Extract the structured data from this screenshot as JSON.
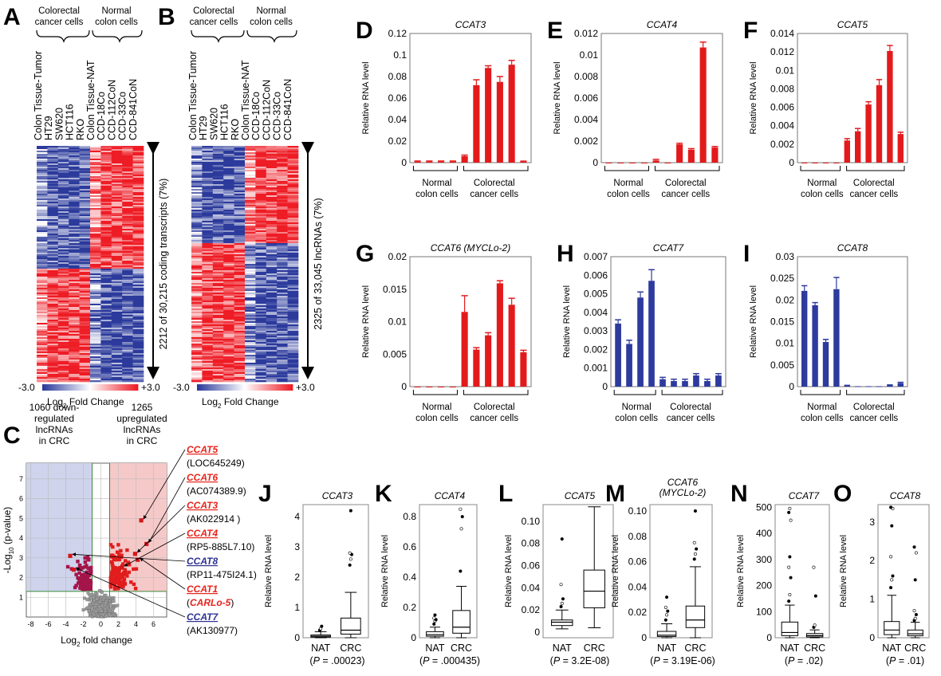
{
  "panels": {
    "A": {
      "letter": "A",
      "group_labels": [
        [
          "Colorectal",
          "cancer cells"
        ],
        [
          "Normal",
          "colon cells"
        ]
      ],
      "sample_labels": [
        "Colon Tissue-Tumor",
        "HT29",
        "SW620",
        "HCT116",
        "RKO",
        "Colon Tissue-NAT",
        "CCD-18Co",
        "CCD-112CoN",
        "CCD-33Co",
        "CCD-841CoN"
      ],
      "side_label": "2212 of 30,215 coding transcripts (7%)",
      "scale_min": "-3.0",
      "scale_max": "+3.0",
      "scale_label_main": "Log",
      "scale_label_sub": "2",
      "scale_label_rest": "Fold Change"
    },
    "B": {
      "letter": "B",
      "group_labels": [
        [
          "Colorectal",
          "cancer cells"
        ],
        [
          "Normal",
          "colon cells"
        ]
      ],
      "sample_labels": [
        "Colon Tissue-Tumor",
        "HT29",
        "SW620",
        "HCT116",
        "RKO",
        "Colon Tissue-NAT",
        "CCD-18Co",
        "CCD-112CoN",
        "CCD-33Co",
        "CCD-841CoN"
      ],
      "side_label": "2325 of 33,045 lncRNAs (7%)",
      "scale_min": "-3.0",
      "scale_max": "+3.0",
      "scale_label_main": "Log",
      "scale_label_sub": "2",
      "scale_label_rest": "Fold Change"
    },
    "C": {
      "letter": "C",
      "down_label": [
        "1060 down-",
        "regulated",
        "lncRNAs",
        "in CRC"
      ],
      "up_label": [
        "1265",
        "upregulated",
        "lncRNAs",
        "in CRC"
      ],
      "xlabel_main": "Log",
      "xlabel_sub": "2",
      "xlabel_rest": " fold change",
      "ylabel_pre": "-Log",
      "ylabel_sub": "10",
      "ylabel_rest": " (p-value)",
      "annotations": [
        {
          "name": "CCAT5",
          "alias": "(LOC645249)",
          "color": "#e8231b"
        },
        {
          "name": "CCAT6",
          "alias": "(AC074389.9)",
          "color": "#e8231b"
        },
        {
          "name": "CCAT3",
          "alias": "(AK022914 )",
          "color": "#e8231b"
        },
        {
          "name": "CCAT4",
          "alias": "(RP5-885L7.10)",
          "color": "#e8231b"
        },
        {
          "name": "CCAT8",
          "alias": "(RP11-475I24.1)",
          "color": "#2e3192"
        },
        {
          "name": "CCAT1",
          "alias_open": "(",
          "alias_name": "CARLo-5",
          "alias_close": ")",
          "color": "#e8231b"
        },
        {
          "name": "CCAT7",
          "alias": "(AK130977)",
          "color": "#2e3192"
        }
      ]
    },
    "letters": {
      "D": "D",
      "E": "E",
      "F": "F",
      "G": "G",
      "H": "H",
      "I": "I",
      "J": "J",
      "K": "K",
      "L": "L",
      "M": "M",
      "N": "N",
      "O": "O"
    },
    "bar_group_labels": {
      "normal": [
        "Normal",
        "colon cells"
      ],
      "crc": [
        "Colorectal",
        "cancer cells"
      ]
    },
    "bar_ylabel": "Relative RNA level",
    "box_ylabel": "Relative RNA level"
  },
  "colors": {
    "red_bar": "#e31a1c",
    "blue_bar": "#2d3a9e",
    "heat_red": "#ee1c25",
    "heat_blue": "#2b3a9b",
    "volcano_down_bg": "#cfd3ec",
    "volcano_up_bg": "#f6c9c9"
  },
  "chart_data": [
    {
      "id": "D",
      "type": "bar",
      "title": "CCAT3",
      "ylim": [
        0,
        0.12
      ],
      "yticks": [
        "0",
        "0.02",
        "0.04",
        "0.06",
        "0.08",
        "0.1",
        "0.12"
      ],
      "ytick_values": [
        0,
        0.02,
        0.04,
        0.06,
        0.08,
        0.1,
        0.12
      ],
      "values": [
        0.001,
        0.001,
        0.001,
        0.001,
        0.006,
        0.072,
        0.088,
        0.075,
        0.091,
        0.001
      ],
      "errors": [
        0.0005,
        0.0005,
        0.0005,
        0.0005,
        0.001,
        0.005,
        0.002,
        0.005,
        0.004,
        0.0004
      ],
      "colors": [
        "red",
        "red",
        "red",
        "red",
        "red",
        "red",
        "red",
        "red",
        "red",
        "red"
      ]
    },
    {
      "id": "E",
      "type": "bar",
      "title": "CCAT4",
      "ylim": [
        0,
        0.012
      ],
      "yticks": [
        "0",
        "0.002",
        "0.004",
        "0.006",
        "0.008",
        "0.01",
        "0.012"
      ],
      "ytick_values": [
        0,
        0.002,
        0.004,
        0.006,
        0.008,
        0.01,
        0.012
      ],
      "values": [
        0,
        0,
        0,
        0,
        0.0002,
        0,
        0.0017,
        0.0012,
        0.0107,
        0.0014
      ],
      "errors": [
        0,
        0,
        0,
        0,
        0.0001,
        0,
        0.0001,
        0.0001,
        0.0005,
        0.0001
      ],
      "colors": [
        "red",
        "red",
        "red",
        "red",
        "red",
        "red",
        "red",
        "red",
        "red",
        "red"
      ]
    },
    {
      "id": "F",
      "type": "bar",
      "title": "CCAT5",
      "ylim": [
        0,
        0.014
      ],
      "yticks": [
        "0",
        "0.002",
        "0.004",
        "0.006",
        "0.008",
        "0.01",
        "0.012",
        "0.014"
      ],
      "ytick_values": [
        0,
        0.002,
        0.004,
        0.006,
        0.008,
        0.01,
        0.012,
        0.014
      ],
      "values": [
        0,
        0,
        0,
        0,
        0.0024,
        0.0034,
        0.0063,
        0.0084,
        0.0121,
        0.0031
      ],
      "errors": [
        0,
        0,
        0,
        0,
        0.0002,
        0.0003,
        0.0003,
        0.0006,
        0.0006,
        0.0002
      ],
      "colors": [
        "red",
        "red",
        "red",
        "red",
        "red",
        "red",
        "red",
        "red",
        "red",
        "red"
      ]
    },
    {
      "id": "G",
      "type": "bar",
      "title": "CCAT6 (MYCLo-2)",
      "ylim": [
        0,
        0.02
      ],
      "yticks": [
        "0",
        "0.005",
        "0.01",
        "0.015",
        "0.02"
      ],
      "ytick_values": [
        0,
        0.005,
        0.01,
        0.015,
        0.02
      ],
      "values": [
        0,
        0,
        0,
        0,
        0.0115,
        0.0057,
        0.0079,
        0.0159,
        0.0126,
        0.0053
      ],
      "errors": [
        0,
        0,
        0,
        0,
        0.0025,
        0.0003,
        0.0004,
        0.0004,
        0.001,
        0.0003
      ],
      "colors": [
        "red",
        "red",
        "red",
        "red",
        "red",
        "red",
        "red",
        "red",
        "red",
        "red"
      ]
    },
    {
      "id": "H",
      "type": "bar",
      "title": "CCAT7",
      "ylim": [
        0,
        0.007
      ],
      "yticks": [
        "0",
        "0.001",
        "0.002",
        "0.003",
        "0.004",
        "0.005",
        "0.006",
        "0.007"
      ],
      "ytick_values": [
        0,
        0.001,
        0.002,
        0.003,
        0.004,
        0.005,
        0.006,
        0.007
      ],
      "values": [
        0.0034,
        0.0023,
        0.0048,
        0.0057,
        0.0004,
        0.0003,
        0.0003,
        0.0006,
        0.0003,
        0.0006
      ],
      "errors": [
        0.0002,
        0.0002,
        0.0003,
        0.0006,
        0.0001,
        0.0001,
        0.0001,
        0.0001,
        0.0001,
        0.0001
      ],
      "colors": [
        "blue",
        "blue",
        "blue",
        "blue",
        "blue",
        "blue",
        "blue",
        "blue",
        "blue",
        "blue"
      ]
    },
    {
      "id": "I",
      "type": "bar",
      "title": "CCAT8",
      "ylim": [
        0,
        0.03
      ],
      "yticks": [
        "0",
        "0.005",
        "0.01",
        "0.015",
        "0.02",
        "0.025",
        "0.03"
      ],
      "ytick_values": [
        0,
        0.005,
        0.01,
        0.015,
        0.02,
        0.025,
        0.03
      ],
      "values": [
        0.0221,
        0.0188,
        0.0103,
        0.0225,
        0.0002,
        0.0001,
        0.0001,
        0.0001,
        0.0003,
        0.0008
      ],
      "errors": [
        0.0012,
        0.0006,
        0.0006,
        0.0027,
        0.0001,
        0,
        0,
        0,
        0.0001,
        0.0002
      ],
      "colors": [
        "blue",
        "blue",
        "blue",
        "blue",
        "blue",
        "blue",
        "blue",
        "blue",
        "blue",
        "blue"
      ]
    },
    {
      "id": "J",
      "type": "box",
      "title": "CCAT3",
      "ylim": [
        0,
        4.4
      ],
      "yticks": [
        "0",
        "1",
        "2",
        "3",
        "4"
      ],
      "ytick_values": [
        0,
        1,
        2,
        3,
        4
      ],
      "categories": [
        "NAT",
        "CRC"
      ],
      "pvalue_pre": "(",
      "pvalue_p": "P",
      "pvalue_rest": " = .00023)",
      "boxes": [
        {
          "min": 0,
          "q1": 0.02,
          "median": 0.05,
          "q3": 0.09,
          "max": 0.2,
          "outliers": [
            0.25,
            0.3,
            0.38
          ]
        },
        {
          "min": 0,
          "q1": 0.12,
          "median": 0.25,
          "q3": 0.65,
          "max": 1.5,
          "outliers": [
            2.4,
            2.6,
            2.75,
            2.8,
            4.2
          ]
        }
      ]
    },
    {
      "id": "K",
      "type": "box",
      "title": "CCAT4",
      "ylim": [
        0,
        0.88
      ],
      "yticks": [
        "0",
        "0.2",
        "0.4",
        "0.6",
        "0.8"
      ],
      "ytick_values": [
        0,
        0.2,
        0.4,
        0.6,
        0.8
      ],
      "categories": [
        "NAT",
        "CRC"
      ],
      "pvalue_pre": "(",
      "pvalue_p": "P",
      "pvalue_rest": " = .000435)",
      "boxes": [
        {
          "min": 0,
          "q1": 0.01,
          "median": 0.02,
          "q3": 0.04,
          "max": 0.07,
          "outliers": [
            0.09,
            0.11,
            0.12,
            0.13,
            0.15
          ]
        },
        {
          "min": 0,
          "q1": 0.03,
          "median": 0.07,
          "q3": 0.18,
          "max": 0.34,
          "outliers": [
            0.44,
            0.72,
            0.8,
            0.85
          ]
        }
      ]
    },
    {
      "id": "L",
      "type": "box",
      "title": "CCAT5",
      "ylim": [
        -0.005,
        0.115
      ],
      "yticks": [
        "0",
        "0.02",
        "0.04",
        "0.06",
        "0.08",
        "0.10"
      ],
      "ytick_values": [
        0,
        0.02,
        0.04,
        0.06,
        0.08,
        0.1
      ],
      "categories": [
        "NAT",
        "CRC"
      ],
      "pvalue_pre": "(",
      "pvalue_p": "P",
      "pvalue_rest": " = 3.2E-08)",
      "boxes": [
        {
          "min": 0.003,
          "q1": 0.006,
          "median": 0.009,
          "q3": 0.011,
          "max": 0.02,
          "outliers": [
            0.023,
            0.026,
            0.03,
            0.043,
            0.084
          ]
        },
        {
          "min": 0.004,
          "q1": 0.022,
          "median": 0.037,
          "q3": 0.056,
          "max": 0.113,
          "outliers": []
        }
      ]
    },
    {
      "id": "M",
      "type": "box",
      "title": "CCAT6",
      "subtitle": "(MYCLo-2)",
      "ylim": [
        0,
        0.105
      ],
      "yticks": [
        "0",
        "0.02",
        "0.04",
        "0.06",
        "0.08",
        "0.10"
      ],
      "ytick_values": [
        0,
        0.02,
        0.04,
        0.06,
        0.08,
        0.1
      ],
      "categories": [
        "NAT",
        "CRC"
      ],
      "pvalue_pre": "(",
      "pvalue_p": "P",
      "pvalue_rest": " = 3.19E-06)",
      "boxes": [
        {
          "min": 0,
          "q1": 0.001,
          "median": 0.002,
          "q3": 0.005,
          "max": 0.011,
          "outliers": [
            0.014,
            0.018,
            0.021,
            0.024,
            0.032
          ]
        },
        {
          "min": 0,
          "q1": 0.008,
          "median": 0.014,
          "q3": 0.025,
          "max": 0.056,
          "outliers": [
            0.062,
            0.066,
            0.07,
            0.075,
            0.1
          ]
        }
      ]
    },
    {
      "id": "N",
      "type": "box",
      "title": "CCAT7",
      "ylim": [
        0,
        510
      ],
      "yticks": [
        "0",
        "100",
        "200",
        "300",
        "400",
        "500"
      ],
      "ytick_values": [
        0,
        100,
        200,
        300,
        400,
        500
      ],
      "categories": [
        "NAT",
        "CRC"
      ],
      "pvalue_pre": "(",
      "pvalue_p": "P",
      "pvalue_rest": " = .02)",
      "boxes": [
        {
          "min": 0,
          "q1": 8,
          "median": 20,
          "q3": 60,
          "max": 125,
          "outliers": [
            140,
            165,
            230,
            270,
            310,
            450,
            480,
            495
          ]
        },
        {
          "min": 0,
          "q1": 3,
          "median": 8,
          "q3": 16,
          "max": 30,
          "outliers": [
            40,
            48,
            160,
            270
          ]
        }
      ]
    },
    {
      "id": "O",
      "type": "box",
      "title": "CCAT8",
      "ylim": [
        0,
        3.45
      ],
      "yticks": [
        "0",
        "1",
        "2",
        "3"
      ],
      "ytick_values": [
        0,
        1,
        2,
        3
      ],
      "categories": [
        "NAT",
        "CRC"
      ],
      "pvalue_pre": "(",
      "pvalue_p": "P",
      "pvalue_rest": " = .01)",
      "boxes": [
        {
          "min": 0,
          "q1": 0.08,
          "median": 0.2,
          "q3": 0.42,
          "max": 1.1,
          "outliers": [
            1.3,
            1.5,
            1.6,
            2.1,
            2.9,
            3.35,
            3.38
          ]
        },
        {
          "min": 0,
          "q1": 0.05,
          "median": 0.1,
          "q3": 0.2,
          "max": 0.4,
          "outliers": [
            0.45,
            0.5,
            0.6,
            0.7,
            1.5,
            2.2,
            2.35
          ]
        }
      ]
    },
    {
      "id": "C",
      "type": "scatter",
      "xlabel": "Log2 fold change",
      "ylabel": "-Log10 (p-value)",
      "xlim": [
        -8.5,
        7.5
      ],
      "ylim": [
        0,
        7.8
      ],
      "xticks": [
        "-8",
        "-6",
        "-4",
        "-2",
        "0",
        "2",
        "4",
        "6"
      ],
      "xtick_values": [
        -8,
        -6,
        -4,
        -2,
        0,
        2,
        4,
        6
      ],
      "yticks": [
        "1",
        "2",
        "3",
        "4",
        "5",
        "6",
        "7"
      ],
      "ytick_values": [
        1,
        2,
        3,
        4,
        5,
        6,
        7
      ],
      "thresholds": {
        "fc_low": -1,
        "fc_high": 1,
        "p": 1.3
      },
      "highlight_points": [
        {
          "x": 4.6,
          "y": 4.9
        },
        {
          "x": 5.2,
          "y": 3.7
        },
        {
          "x": 3.9,
          "y": 3.2
        },
        {
          "x": 2.4,
          "y": 2.5
        },
        {
          "x": -3.5,
          "y": 3.1
        },
        {
          "x": 4.2,
          "y": 2.9
        },
        {
          "x": -3.1,
          "y": 2.4
        }
      ]
    }
  ]
}
